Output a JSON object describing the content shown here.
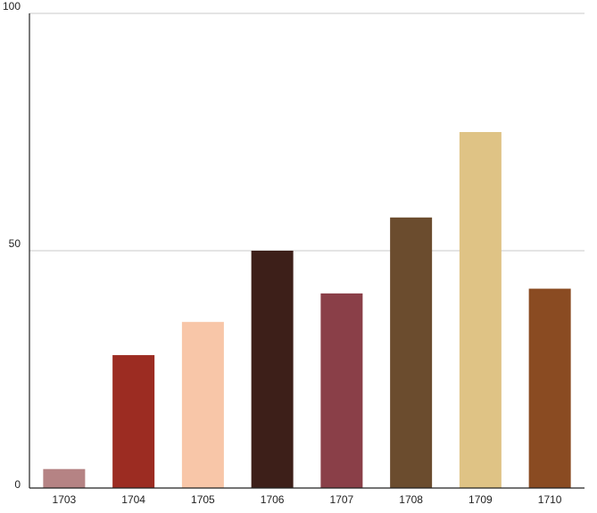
{
  "chart_data": {
    "type": "bar",
    "title": "",
    "xlabel": "",
    "ylabel": "",
    "categories": [
      "1703",
      "1704",
      "1705",
      "1706",
      "1707",
      "1708",
      "1709",
      "1710"
    ],
    "values": [
      4,
      28,
      35,
      50,
      41,
      57,
      75,
      42
    ],
    "colors": [
      "#b58384",
      "#9c2c22",
      "#f8c6a8",
      "#3d1f19",
      "#8a3f48",
      "#6b4c2e",
      "#dfc385",
      "#8a4b22"
    ],
    "ylim": [
      0,
      100
    ],
    "yticks": [
      "0",
      "50",
      "100"
    ],
    "grid": true,
    "legend": "none"
  }
}
